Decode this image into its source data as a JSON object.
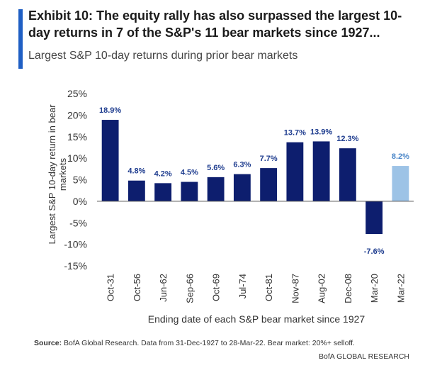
{
  "header": {
    "title": "Exhibit 10: The equity rally has also surpassed the largest 10-day returns in 7 of the S&P's 11 bear markets since 1927...",
    "subtitle": "Largest S&P 10-day returns during prior bear markets",
    "accent_color": "#1f5fc4"
  },
  "chart_data": {
    "type": "bar",
    "categories": [
      "Oct-31",
      "Oct-56",
      "Jun-62",
      "Sep-66",
      "Oct-69",
      "Jul-74",
      "Oct-81",
      "Nov-87",
      "Aug-02",
      "Dec-08",
      "Mar-20",
      "Mar-22"
    ],
    "values": [
      18.9,
      4.8,
      4.2,
      4.5,
      5.6,
      6.3,
      7.7,
      13.7,
      13.9,
      12.3,
      -7.6,
      8.2
    ],
    "data_labels": [
      "18.9%",
      "4.8%",
      "4.2%",
      "4.5%",
      "5.6%",
      "6.3%",
      "7.7%",
      "13.7%",
      "13.9%",
      "12.3%",
      "-7.6%",
      "8.2%"
    ],
    "ylabel": "Largest S&P 10-day return in bear markets",
    "xlabel": "Ending date of each S&P bear market since 1927",
    "ylim": [
      -15,
      25
    ],
    "yticks": [
      25,
      20,
      15,
      10,
      5,
      0,
      -5,
      -10,
      -15
    ],
    "ytick_labels": [
      "25%",
      "20%",
      "15%",
      "10%",
      "5%",
      "0%",
      "-5%",
      "-10%",
      "-15%"
    ],
    "colors": {
      "bar": "#0d1e6e",
      "highlight_bar": "#9dc3e6",
      "label": "#1f3d8f",
      "highlight_label": "#4a86c8"
    },
    "highlight_index": 11,
    "grid": false
  },
  "footer": {
    "source_label": "Source:",
    "source_text": "BofA Global Research. Data from 31-Dec-1927 to 28-Mar-22. Bear market: 20%+ selloff.",
    "brand": "BofA GLOBAL RESEARCH"
  }
}
